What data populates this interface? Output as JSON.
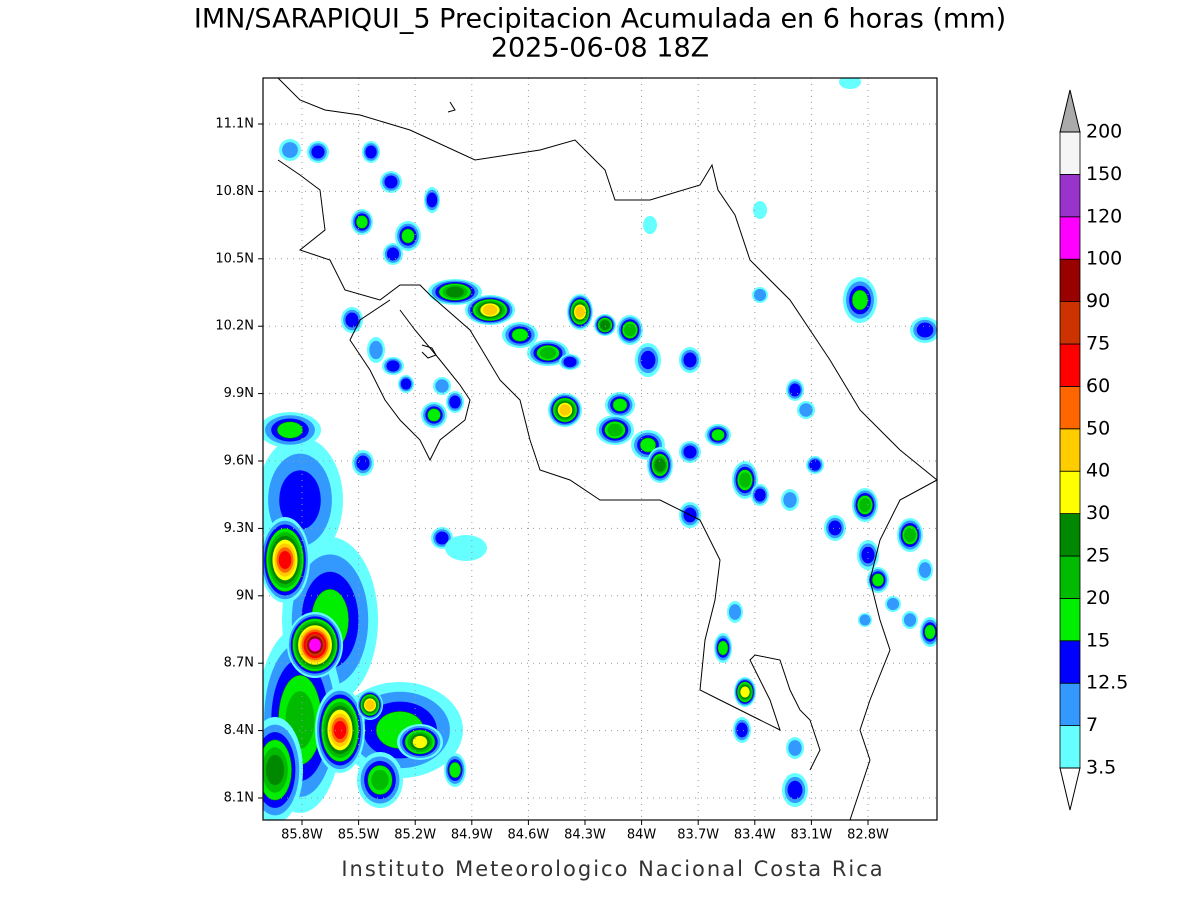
{
  "header": {
    "title": "IMN/SARAPIQUI_5 Precipitacion Acumulada en 6 horas (mm)",
    "subtitle": "2025-06-08 18Z"
  },
  "map": {
    "lat_labels": [
      "11.1N",
      "10.8N",
      "10.5N",
      "10.2N",
      "9.9N",
      "9.6N",
      "9.3N",
      "9N",
      "8.7N",
      "8.4N",
      "8.1N"
    ],
    "lon_labels": [
      "85.8W",
      "85.5W",
      "85.2W",
      "84.9W",
      "84.6W",
      "84.3W",
      "84W",
      "83.7W",
      "83.4W",
      "83.1W",
      "82.8W"
    ]
  },
  "colorbar": {
    "levels": [
      3.5,
      7,
      12.5,
      15,
      20,
      25,
      30,
      40,
      50,
      60,
      75,
      90,
      100,
      120,
      150,
      200
    ],
    "colors": [
      "#66ffff",
      "#3399ff",
      "#0000ff",
      "#00ee00",
      "#00bb00",
      "#008800",
      "#ffff00",
      "#ffcc00",
      "#ff6600",
      "#ff0000",
      "#cc3300",
      "#990000",
      "#ff00ff",
      "#9933cc",
      "#f5f5f5"
    ],
    "above_color": "#aaaaaa",
    "below_color": "#ffffff"
  },
  "footer": "Instituto Meteorologico Nacional Costa Rica"
}
